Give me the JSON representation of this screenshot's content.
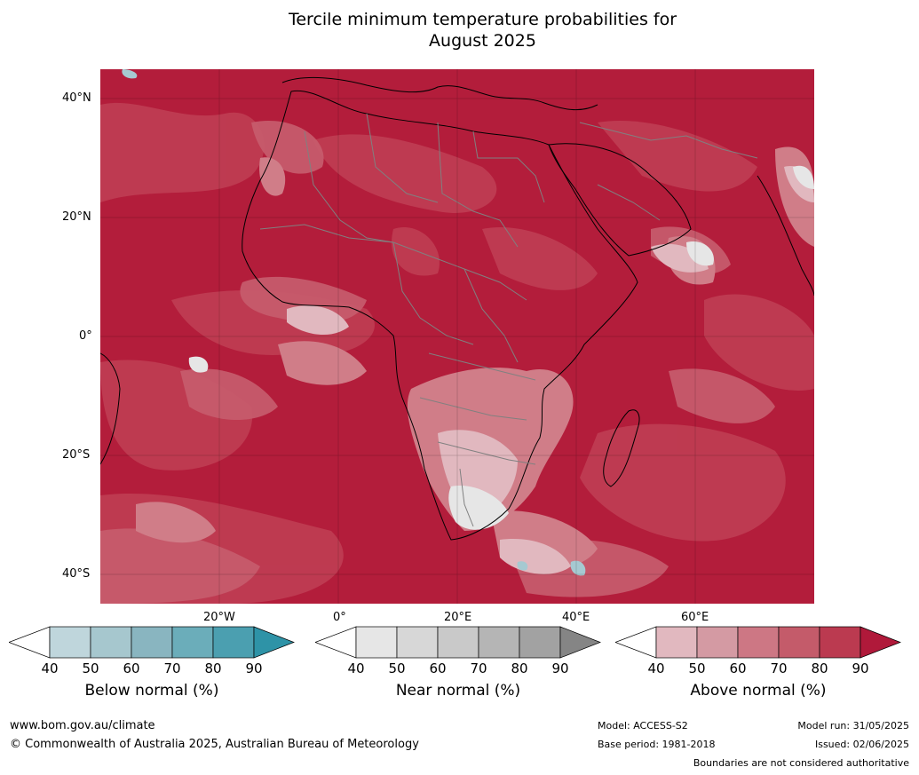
{
  "title_line1": "Tercile minimum temperature probabilities for",
  "title_line2": "August 2025",
  "map": {
    "lat_labels": [
      "40°N",
      "20°N",
      "0°",
      "20°S",
      "40°S"
    ],
    "lon_labels": [
      "20°W",
      "0°",
      "20°E",
      "40°E",
      "60°E"
    ],
    "colors": {
      "above_60": "#d07d88",
      "above_70": "#c65b6b",
      "above_80": "#bf3c52",
      "above_90": "#b31d3b",
      "near": "#e6e6e6",
      "white": "#ffffff",
      "below": "#a6c9d1",
      "coast": "#000000",
      "border": "#808080"
    }
  },
  "colorbars": [
    {
      "title": "Below normal (%)",
      "ticks": [
        "40",
        "50",
        "60",
        "70",
        "80",
        "90"
      ],
      "colors": [
        "#ffffff",
        "#bfd6dc",
        "#a6c7ce",
        "#89b5c0",
        "#6badba",
        "#4b9fb0",
        "#2e93a7"
      ]
    },
    {
      "title": "Near normal (%)",
      "ticks": [
        "40",
        "50",
        "60",
        "70",
        "80",
        "90"
      ],
      "colors": [
        "#ffffff",
        "#e6e6e6",
        "#d7d7d7",
        "#c9c9c9",
        "#b5b5b5",
        "#a2a2a2",
        "#858585"
      ]
    },
    {
      "title": "Above normal (%)",
      "ticks": [
        "40",
        "50",
        "60",
        "70",
        "80",
        "90"
      ],
      "colors": [
        "#ffffff",
        "#e1b8bf",
        "#d49aa3",
        "#cd7784",
        "#c45b6a",
        "#bb3a50",
        "#b0193a"
      ]
    }
  ],
  "footer": {
    "website": "www.bom.gov.au/climate",
    "copyright": "© Commonwealth of Australia 2025, Australian Bureau of Meteorology",
    "model": "Model: ACCESS-S2",
    "base_period": "Base period: 1981-2018",
    "model_run": "Model run: 31/05/2025",
    "issued": "Issued: 02/06/2025",
    "disclaimer": "Boundaries are not considered authoritative"
  }
}
